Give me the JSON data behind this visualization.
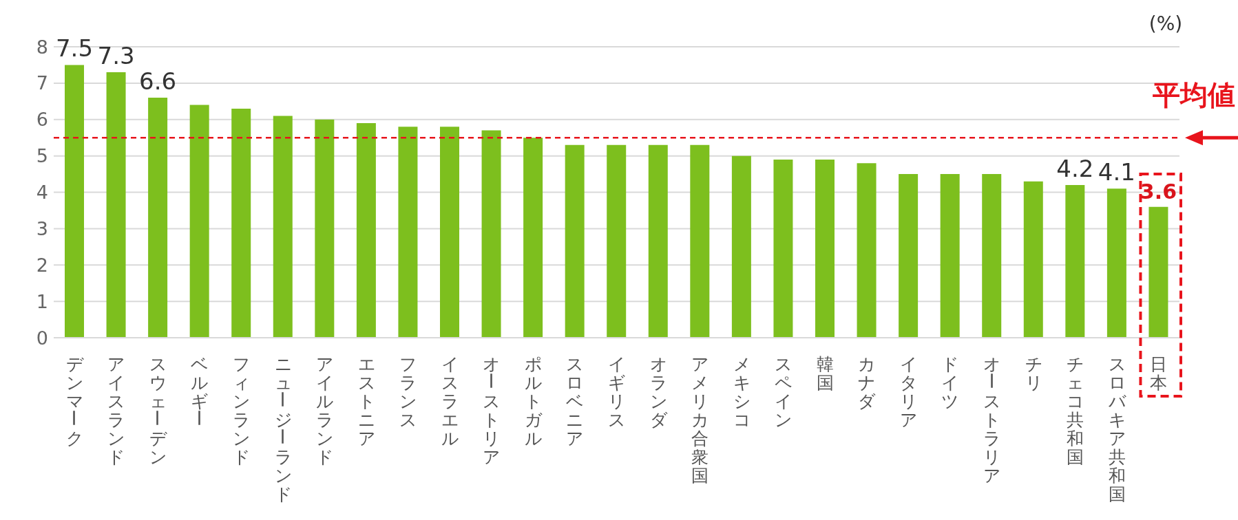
{
  "chart_data": {
    "type": "bar",
    "ylabel": "(%)",
    "categories": [
      "デンマーク",
      "アイスランド",
      "スウェーデン",
      "ベルギー",
      "フィンランド",
      "ニュージーランド",
      "アイルランド",
      "エストニア",
      "フランス",
      "イスラエル",
      "オーストリア",
      "ポルトガル",
      "スロベニア",
      "イギリス",
      "オランダ",
      "アメリカ合衆国",
      "メキシコ",
      "スペイン",
      "韓国",
      "カナダ",
      "イタリア",
      "ドイツ",
      "オーストラリア",
      "チリ",
      "チェコ共和国",
      "スロバキア共和国",
      "日本"
    ],
    "values": [
      7.5,
      7.3,
      6.6,
      6.4,
      6.3,
      6.1,
      6.0,
      5.9,
      5.8,
      5.8,
      5.7,
      5.5,
      5.3,
      5.3,
      5.3,
      5.3,
      5.0,
      4.9,
      4.9,
      4.8,
      4.5,
      4.5,
      4.5,
      4.3,
      4.2,
      4.1,
      3.6
    ],
    "value_labels": [
      "7.5",
      "7.3",
      "6.6",
      null,
      null,
      null,
      null,
      null,
      null,
      null,
      null,
      null,
      null,
      null,
      null,
      null,
      null,
      null,
      null,
      null,
      null,
      null,
      null,
      null,
      "4.2",
      "4.1",
      "3.6"
    ],
    "color": "#7dbf1e",
    "ylim": [
      0,
      8
    ],
    "yticks": [
      0,
      1,
      2,
      3,
      4,
      5,
      6,
      7,
      8
    ],
    "grid": "y",
    "ref_lines": [
      {
        "axis": "y",
        "value": 5.5,
        "label": "平均値",
        "color": "#e8141c",
        "line_style": "dashed"
      }
    ]
  }
}
